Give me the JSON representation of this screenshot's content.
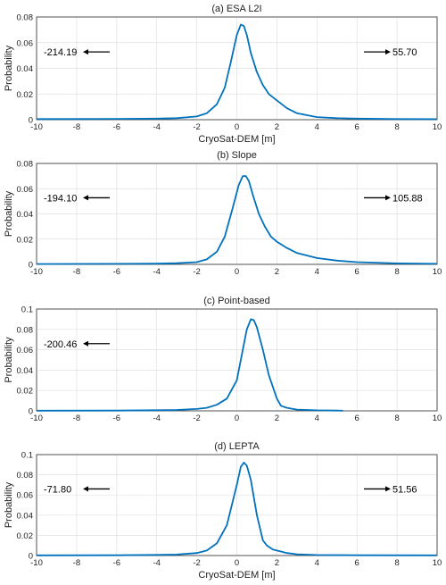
{
  "chart_data": [
    {
      "type": "line",
      "title": "(a) ESA L2I",
      "xlabel": "CryoSat-DEM [m]",
      "ylabel": "Probability",
      "xlim": [
        -10,
        10
      ],
      "ylim": [
        0,
        0.08
      ],
      "xticks": [
        "-10",
        "-8",
        "-6",
        "-4",
        "-2",
        "0",
        "2",
        "4",
        "6",
        "8",
        "10"
      ],
      "yticks": [
        "0",
        "0.02",
        "0.04",
        "0.06",
        "0.08"
      ],
      "grid": true,
      "color": "#0072BD",
      "x": [
        -10,
        -6,
        -4,
        -3,
        -2,
        -1.5,
        -1,
        -0.6,
        -0.3,
        0,
        0.2,
        0.35,
        0.5,
        0.7,
        1,
        1.3,
        1.6,
        2,
        2.5,
        3,
        4,
        5,
        6,
        8,
        10
      ],
      "y": [
        0.0005,
        0.0006,
        0.0008,
        0.0012,
        0.0025,
        0.005,
        0.012,
        0.025,
        0.045,
        0.066,
        0.074,
        0.073,
        0.066,
        0.052,
        0.037,
        0.027,
        0.02,
        0.015,
        0.009,
        0.005,
        0.002,
        0.0012,
        0.0008,
        0.0005,
        0.0004
      ],
      "annotations": {
        "left": "-214.19",
        "right": "55.70"
      }
    },
    {
      "type": "line",
      "title": "(b) Slope",
      "xlabel": "",
      "ylabel": "Probability",
      "xlim": [
        -10,
        10
      ],
      "ylim": [
        0,
        0.08
      ],
      "xticks": [
        "-10",
        "-8",
        "-6",
        "-4",
        "-2",
        "0",
        "2",
        "4",
        "6",
        "8",
        "10"
      ],
      "yticks": [
        "0",
        "0.02",
        "0.04",
        "0.06",
        "0.08"
      ],
      "grid": true,
      "color": "#0072BD",
      "x": [
        -10,
        -6,
        -4,
        -3,
        -2,
        -1.5,
        -1,
        -0.6,
        -0.2,
        0.1,
        0.3,
        0.45,
        0.6,
        0.8,
        1.1,
        1.4,
        1.7,
        2,
        2.5,
        3,
        4,
        5,
        6,
        8,
        10
      ],
      "y": [
        0.0003,
        0.0004,
        0.0006,
        0.0009,
        0.0018,
        0.004,
        0.01,
        0.022,
        0.045,
        0.063,
        0.07,
        0.07,
        0.066,
        0.055,
        0.04,
        0.03,
        0.022,
        0.018,
        0.013,
        0.009,
        0.005,
        0.003,
        0.0018,
        0.0008,
        0.0004
      ],
      "annotations": {
        "left": "-194.10",
        "right": "105.88"
      }
    },
    {
      "type": "line",
      "title": "(c) Point-based",
      "xlabel": "",
      "ylabel": "Probability",
      "xlim": [
        -10,
        10
      ],
      "ylim": [
        0,
        0.1
      ],
      "xticks": [
        "-10",
        "-8",
        "-6",
        "-4",
        "-2",
        "0",
        "2",
        "4",
        "6",
        "8",
        "10"
      ],
      "yticks": [
        "0",
        "0.02",
        "0.04",
        "0.06",
        "0.08",
        "0.1"
      ],
      "grid": true,
      "color": "#0072BD",
      "x": [
        -10,
        -6,
        -4,
        -3,
        -2,
        -1.5,
        -1,
        -0.5,
        0,
        0.3,
        0.5,
        0.7,
        0.85,
        1,
        1.3,
        1.6,
        2,
        2.2,
        2.5,
        3,
        4,
        5,
        5.3
      ],
      "y": [
        0.0002,
        0.0003,
        0.0006,
        0.0009,
        0.0018,
        0.003,
        0.006,
        0.012,
        0.03,
        0.06,
        0.08,
        0.09,
        0.089,
        0.082,
        0.06,
        0.035,
        0.012,
        0.005,
        0.003,
        0.0012,
        0.0005,
        0.0003,
        0.0002
      ],
      "annotations": {
        "left": "-200.46",
        "right": ""
      }
    },
    {
      "type": "line",
      "title": "(d) LEPTA",
      "xlabel": "CryoSat-DEM [m]",
      "ylabel": "Probability",
      "xlim": [
        -10,
        10
      ],
      "ylim": [
        0,
        0.1
      ],
      "xticks": [
        "-10",
        "-8",
        "-6",
        "-4",
        "-2",
        "0",
        "2",
        "4",
        "6",
        "8",
        "10"
      ],
      "yticks": [
        "0",
        "0.02",
        "0.04",
        "0.06",
        "0.08",
        "0.1"
      ],
      "grid": true,
      "color": "#0072BD",
      "x": [
        -10,
        -6,
        -4,
        -3,
        -2,
        -1.5,
        -1,
        -0.5,
        0,
        0.2,
        0.35,
        0.5,
        0.7,
        1,
        1.3,
        1.5,
        1.8,
        2.2,
        2.5,
        3,
        4,
        6,
        10
      ],
      "y": [
        0.0002,
        0.0003,
        0.0006,
        0.001,
        0.0025,
        0.005,
        0.012,
        0.03,
        0.07,
        0.088,
        0.092,
        0.089,
        0.075,
        0.04,
        0.015,
        0.01,
        0.006,
        0.004,
        0.0025,
        0.0012,
        0.0005,
        0.0003,
        0.0002
      ],
      "annotations": {
        "left": "-71.80",
        "right": "51.56"
      }
    }
  ]
}
